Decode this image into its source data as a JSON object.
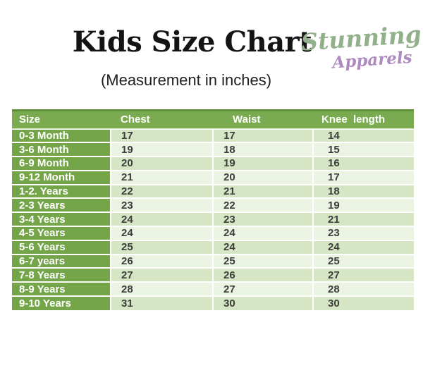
{
  "header": {
    "title": "Kids Size Chart",
    "subtitle": "(Measurement in inches)",
    "logo": {
      "line1": "Stunning",
      "line2": "Apparels"
    }
  },
  "table": {
    "columns": [
      "Size",
      "Chest",
      "Waist",
      "Knee  length"
    ],
    "rows": [
      {
        "size": "0-3 Month",
        "chest": "17",
        "waist": "17",
        "knee": "14"
      },
      {
        "size": "3-6 Month",
        "chest": "19",
        "waist": "18",
        "knee": "15"
      },
      {
        "size": "6-9 Month",
        "chest": "20",
        "waist": "19",
        "knee": "16"
      },
      {
        "size": "9-12 Month",
        "chest": "21",
        "waist": "20",
        "knee": "17"
      },
      {
        "size": "1-2. Years",
        "chest": "22",
        "waist": "21",
        "knee": "18"
      },
      {
        "size": "2-3 Years",
        "chest": "23",
        "waist": "22",
        "knee": "19"
      },
      {
        "size": "3-4 Years",
        "chest": "24",
        "waist": "23",
        "knee": "21"
      },
      {
        "size": "4-5 Years",
        "chest": "24",
        "waist": "24",
        "knee": "23"
      },
      {
        "size": "5-6 Years",
        "chest": "25",
        "waist": "24",
        "knee": "24"
      },
      {
        "size": "6-7 years",
        "chest": "26",
        "waist": "25",
        "knee": "25"
      },
      {
        "size": "7-8 Years",
        "chest": "27",
        "waist": "26",
        "knee": "27"
      },
      {
        "size": "8-9 Years",
        "chest": "28",
        "waist": "27",
        "knee": "28"
      },
      {
        "size": "9-10 Years",
        "chest": "31",
        "waist": "30",
        "knee": "30"
      }
    ]
  },
  "colors": {
    "header_bg": "#7aab51",
    "size_col_bg": "#74a649",
    "row_band_dark": "#d6e5c3",
    "row_band_light": "#ebf3e2",
    "top_border": "#5e9038",
    "number_color": "#3d3d3d",
    "title_color": "#141414",
    "logo_green": "#92b08b",
    "logo_purple": "#ae8abf"
  }
}
